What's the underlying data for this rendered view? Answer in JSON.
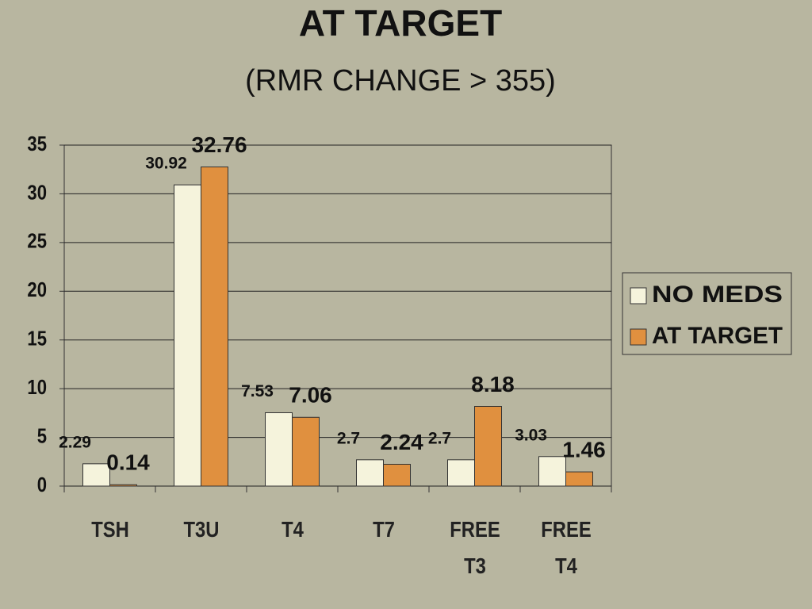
{
  "chart_data": {
    "type": "bar",
    "title": "AT TARGET",
    "subtitle": "(RMR CHANGE > 355)",
    "categories": [
      "TSH",
      "T3U",
      "T4",
      "T7",
      "FREE T3",
      "FREE T4"
    ],
    "series": [
      {
        "name": "NO MEDS",
        "color": "#f5f3dc",
        "values": [
          2.29,
          30.92,
          7.53,
          2.7,
          2.7,
          3.03
        ]
      },
      {
        "name": "AT TARGET",
        "color": "#e0903f",
        "values": [
          0.14,
          32.76,
          7.06,
          2.24,
          8.18,
          1.46
        ]
      }
    ],
    "ylim": [
      0,
      35
    ],
    "yticks": [
      0,
      5,
      10,
      15,
      20,
      25,
      30,
      35
    ],
    "grid": true,
    "legend": "right"
  }
}
